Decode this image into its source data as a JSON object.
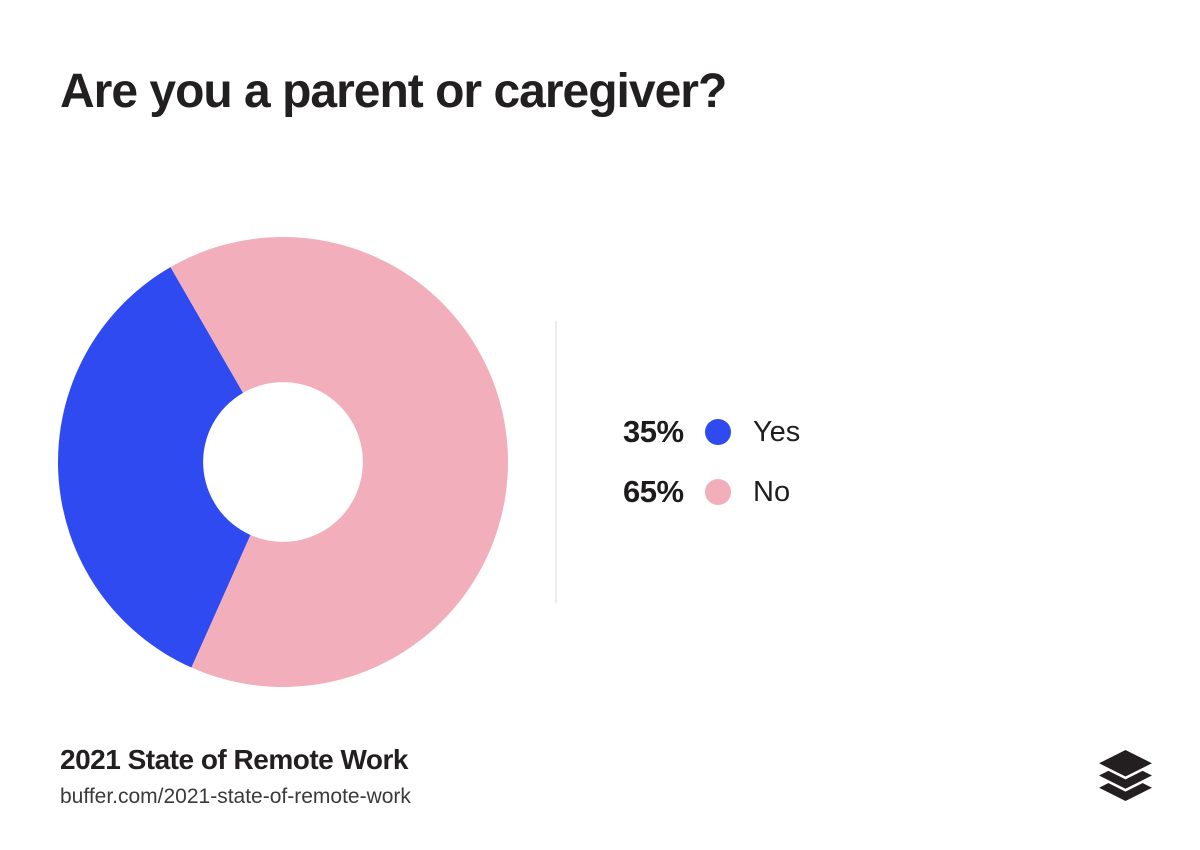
{
  "page": {
    "background": "#FFFFFF"
  },
  "header": {
    "title": "Are you a parent or caregiver?"
  },
  "chart_data": {
    "type": "pie",
    "variant": "donut",
    "title": "Are you a parent or caregiver?",
    "hole_ratio": 0.355,
    "start_angle_deg": 204,
    "legend_position": "right",
    "slices": [
      {
        "label": "Yes",
        "value": 35,
        "percent_label": "35%",
        "color": "#2E4AF0"
      },
      {
        "label": "No",
        "value": 65,
        "percent_label": "65%",
        "color": "#F2AEBA"
      }
    ]
  },
  "footer": {
    "source_title": "2021 State of Remote Work",
    "source_url": "buffer.com/2021-state-of-remote-work"
  },
  "branding": {
    "logo_name": "buffer-logo",
    "logo_color": "#231F20"
  }
}
